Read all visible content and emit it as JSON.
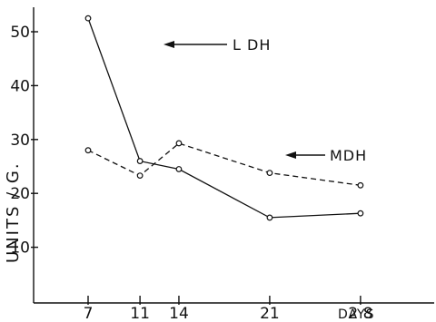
{
  "chart_data": {
    "type": "line",
    "xlabel": "DAYS",
    "ylabel": "UNITS / G.",
    "x": [
      7,
      11,
      14,
      21,
      28
    ],
    "xticks": [
      "7",
      "11",
      "14",
      "21",
      "2 8"
    ],
    "yticks": [
      "10",
      "20",
      "30",
      "40",
      "50"
    ],
    "ytick_values": [
      10,
      20,
      30,
      40,
      50
    ],
    "xlim": [
      0,
      30
    ],
    "ylim": [
      0,
      55
    ],
    "grid": false,
    "series": [
      {
        "name": "L DH",
        "style": "solid",
        "values": [
          52.5,
          26.0,
          24.5,
          15.5,
          16.3
        ]
      },
      {
        "name": "MDH",
        "style": "dashed",
        "values": [
          28.0,
          23.3,
          29.3,
          23.8,
          21.5
        ]
      }
    ],
    "annotations": [
      {
        "text": "L DH",
        "series": 0
      },
      {
        "text": "MDH",
        "series": 1
      }
    ]
  },
  "colors": {
    "ink": "#111111",
    "background": "#ffffff"
  }
}
